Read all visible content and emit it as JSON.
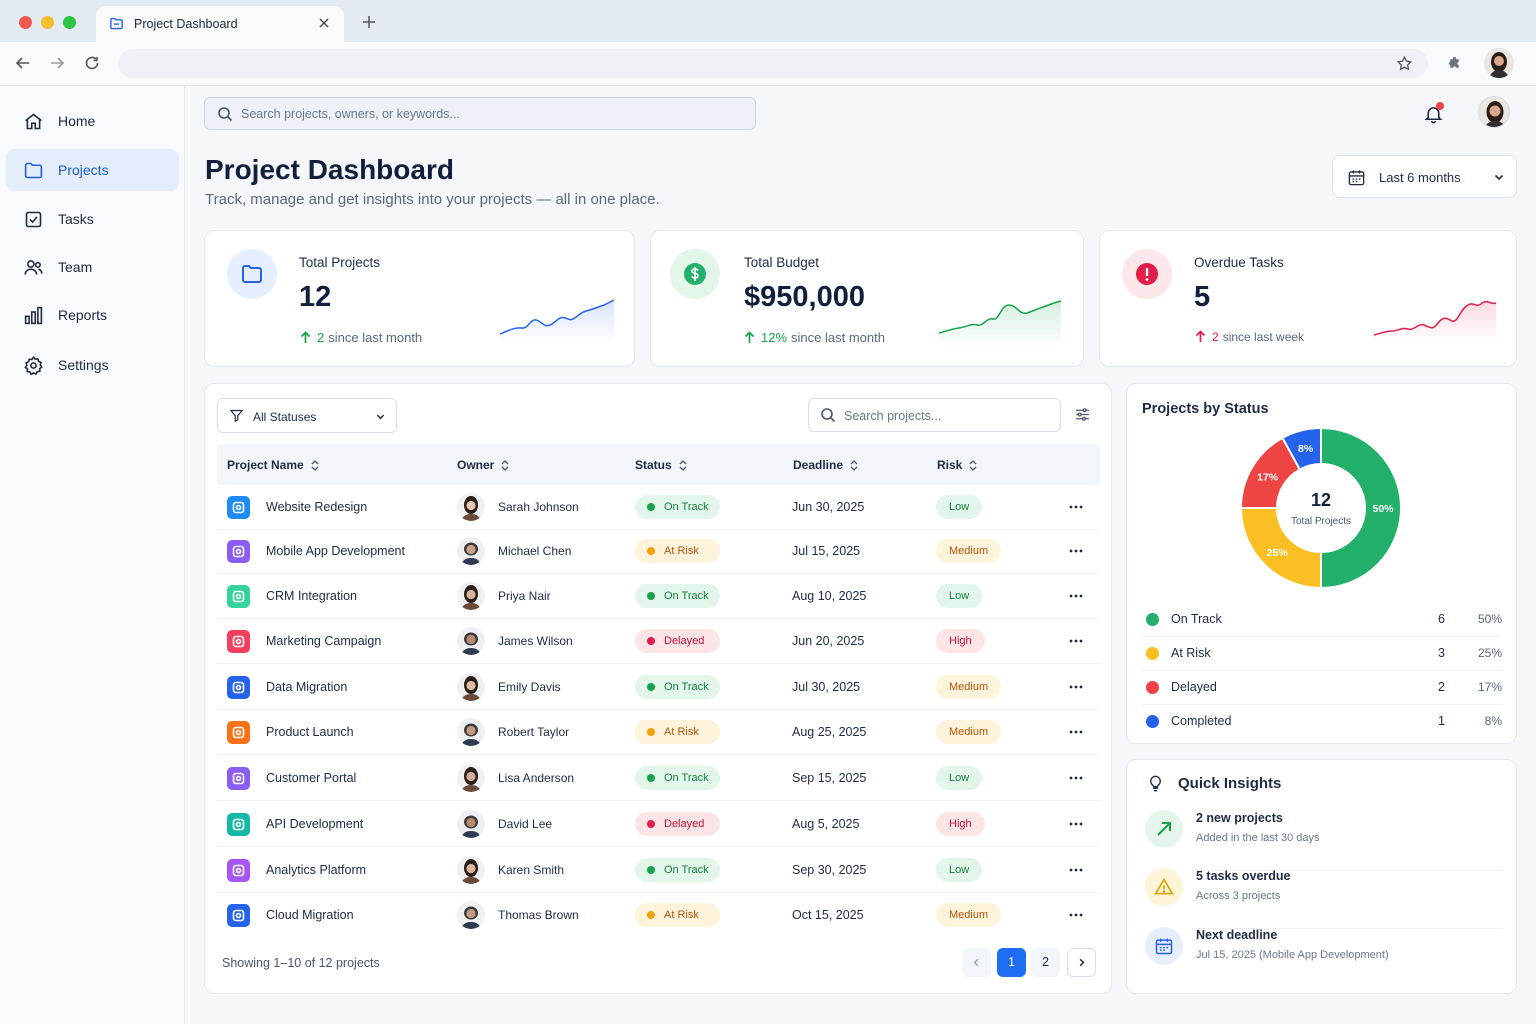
{
  "browser": {
    "tab_title": "Project Dashboard"
  },
  "sidebar": {
    "items": [
      {
        "label": "Home",
        "icon": "home-icon"
      },
      {
        "label": "Projects",
        "icon": "folder-icon",
        "active": true
      },
      {
        "label": "Tasks",
        "icon": "checkbox-icon"
      },
      {
        "label": "Team",
        "icon": "users-icon"
      },
      {
        "label": "Reports",
        "icon": "bar-chart-icon"
      },
      {
        "label": "Settings",
        "icon": "gear-icon"
      }
    ]
  },
  "header": {
    "search_placeholder": "Search projects, owners, or keywords...",
    "title": "Project Dashboard",
    "subtitle": "Track, manage and get insights into your projects — all in one place.",
    "date_range": "Last 6 months"
  },
  "kpis": [
    {
      "label": "Total Projects",
      "value": "12",
      "delta": "2",
      "delta_text": "since last month",
      "color": "#2563eb"
    },
    {
      "label": "Total Budget",
      "value": "$950,000",
      "delta": "12%",
      "delta_text": "since last month",
      "color": "#16a34a"
    },
    {
      "label": "Overdue Tasks",
      "value": "5",
      "delta": "2",
      "delta_text": "since last week",
      "color": "#e11d48"
    }
  ],
  "table": {
    "filter_label": "All Statuses",
    "search_placeholder": "Search projects...",
    "columns": [
      "Project Name",
      "Owner",
      "Status",
      "Deadline",
      "Risk"
    ],
    "rows": [
      {
        "name": "Website Redesign",
        "owner": "Sarah Johnson",
        "status": "On Track",
        "deadline": "Jun 30, 2025",
        "risk": "Low",
        "icon_color": "#1d8bf1"
      },
      {
        "name": "Mobile App Development",
        "owner": "Michael Chen",
        "status": "At Risk",
        "deadline": "Jul 15, 2025",
        "risk": "Medium",
        "icon_color": "#8b5cf6"
      },
      {
        "name": "CRM Integration",
        "owner": "Priya Nair",
        "status": "On Track",
        "deadline": "Aug 10, 2025",
        "risk": "Low",
        "icon_color": "#34d399"
      },
      {
        "name": "Marketing Campaign",
        "owner": "James Wilson",
        "status": "Delayed",
        "deadline": "Jun 20, 2025",
        "risk": "High",
        "icon_color": "#f43f5e"
      },
      {
        "name": "Data Migration",
        "owner": "Emily Davis",
        "status": "On Track",
        "deadline": "Jul 30, 2025",
        "risk": "Medium",
        "icon_color": "#2563eb"
      },
      {
        "name": "Product Launch",
        "owner": "Robert Taylor",
        "status": "At Risk",
        "deadline": "Aug 25, 2025",
        "risk": "Medium",
        "icon_color": "#f97316"
      },
      {
        "name": "Customer Portal",
        "owner": "Lisa Anderson",
        "status": "On Track",
        "deadline": "Sep 15, 2025",
        "risk": "Low",
        "icon_color": "#8b5cf6"
      },
      {
        "name": "API Development",
        "owner": "David Lee",
        "status": "Delayed",
        "deadline": "Aug 5, 2025",
        "risk": "High",
        "icon_color": "#14b8a6"
      },
      {
        "name": "Analytics Platform",
        "owner": "Karen Smith",
        "status": "On Track",
        "deadline": "Sep 30, 2025",
        "risk": "Low",
        "icon_color": "#a855f7"
      },
      {
        "name": "Cloud Migration",
        "owner": "Thomas Brown",
        "status": "At Risk",
        "deadline": "Oct 15, 2025",
        "risk": "Medium",
        "icon_color": "#2563eb"
      }
    ],
    "showing_text": "Showing 1–10 of 12 projects",
    "pages": [
      "1",
      "2"
    ],
    "current_page": "1"
  },
  "status_chart": {
    "title": "Projects by Status",
    "total": "12",
    "total_label": "Total Projects",
    "slices": [
      {
        "name": "On Track",
        "count": "6",
        "pct": "50%",
        "value": 50,
        "color": "#22b06b"
      },
      {
        "name": "At Risk",
        "count": "3",
        "pct": "25%",
        "value": 25,
        "color": "#fbbf24"
      },
      {
        "name": "Delayed",
        "count": "2",
        "pct": "17%",
        "value": 17,
        "color": "#ef4444"
      },
      {
        "name": "Completed",
        "count": "1",
        "pct": "8%",
        "value": 8,
        "color": "#2563eb"
      }
    ]
  },
  "insights": {
    "title": "Quick Insights",
    "items": [
      {
        "title": "2 new projects",
        "sub": "Added in the last 30 days",
        "icon": "trend-up-icon"
      },
      {
        "title": "5 tasks overdue",
        "sub": "Across 3 projects",
        "icon": "warning-icon"
      },
      {
        "title": "Next deadline",
        "sub": "Jul 15, 2025 (Mobile App Development)",
        "icon": "calendar-icon"
      }
    ]
  }
}
